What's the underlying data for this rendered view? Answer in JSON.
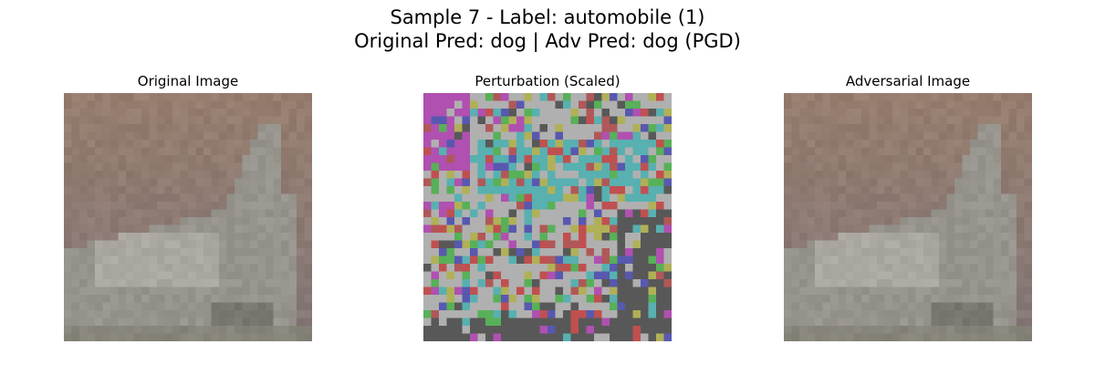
{
  "figure": {
    "title_line1": "Sample 7 - Label: automobile (1)",
    "title_line2": "Original Pred: dog | Adv Pred: dog (PGD)"
  },
  "panels": [
    {
      "title": "Original Image",
      "kind": "image"
    },
    {
      "title": "Perturbation (Scaled)",
      "kind": "noise"
    },
    {
      "title": "Adversarial Image",
      "kind": "image"
    }
  ],
  "perturbation_palette": [
    "#b050b0",
    "#b0b0b0",
    "#58b0b0",
    "#c05050",
    "#58b058",
    "#b0b058",
    "#585858",
    "#5858b0",
    "#b05858",
    "#b0b0b0"
  ]
}
